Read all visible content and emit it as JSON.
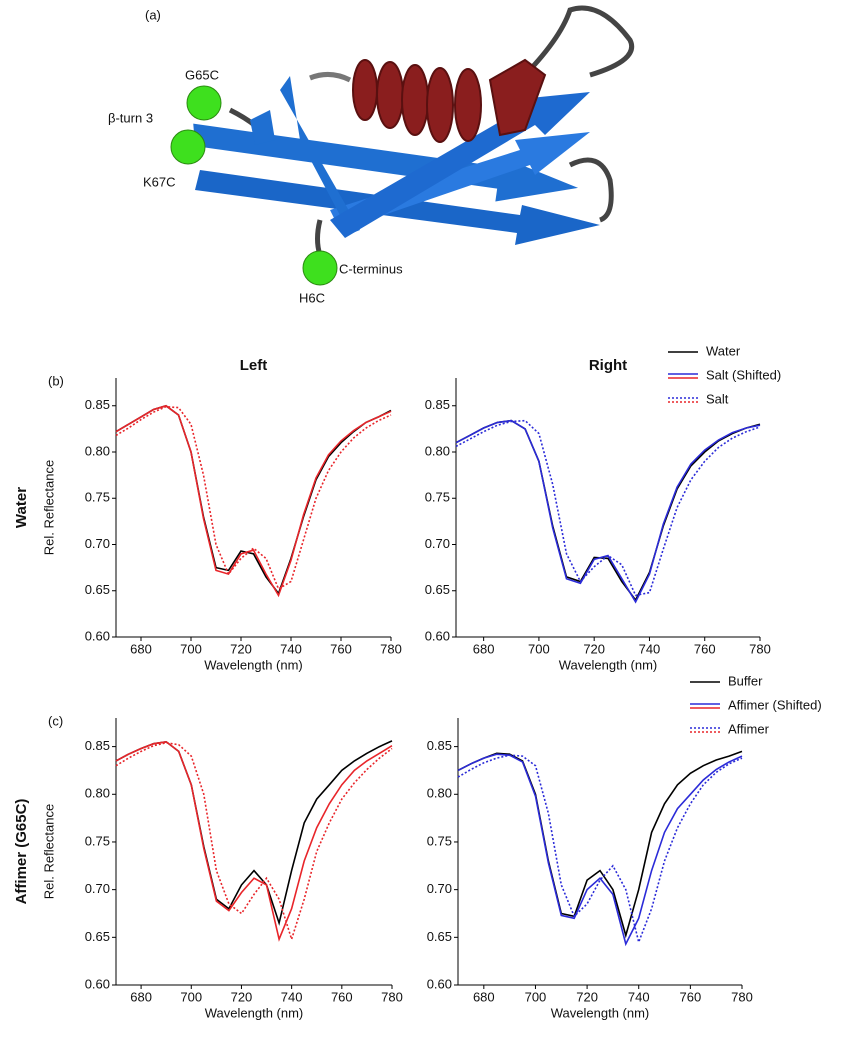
{
  "figure_a": {
    "panel": "(a)",
    "labels": [
      "G65C",
      "β-turn 3",
      "K67C",
      "C-terminus",
      "H6C"
    ]
  },
  "chart_data": [
    {
      "type": "line",
      "panel": "(b)",
      "title": "Left",
      "row_label": "Water",
      "x_label": "Wavelength (nm)",
      "y_label": "Rel. Reflectance",
      "x": [
        670,
        675,
        680,
        685,
        690,
        695,
        700,
        705,
        710,
        715,
        720,
        725,
        730,
        735,
        740,
        745,
        750,
        755,
        760,
        765,
        770,
        775,
        780
      ],
      "series": [
        {
          "name": "Water",
          "color": "#000000",
          "dotted": false,
          "values": [
            0.822,
            0.83,
            0.838,
            0.846,
            0.85,
            0.84,
            0.8,
            0.73,
            0.675,
            0.672,
            0.693,
            0.69,
            0.665,
            0.647,
            0.685,
            0.73,
            0.77,
            0.795,
            0.81,
            0.822,
            0.832,
            0.838,
            0.845
          ]
        },
        {
          "name": "Salt (Shifted)",
          "color": "#e8252a",
          "dotted": false,
          "values": [
            0.822,
            0.83,
            0.838,
            0.846,
            0.85,
            0.84,
            0.8,
            0.728,
            0.672,
            0.668,
            0.69,
            0.694,
            0.668,
            0.645,
            0.683,
            0.732,
            0.772,
            0.797,
            0.812,
            0.823,
            0.832,
            0.838,
            0.844
          ]
        },
        {
          "name": "Salt",
          "color": "#e8252a",
          "dotted": true,
          "values": [
            0.818,
            0.826,
            0.835,
            0.843,
            0.849,
            0.848,
            0.83,
            0.775,
            0.7,
            0.668,
            0.685,
            0.696,
            0.685,
            0.652,
            0.66,
            0.705,
            0.75,
            0.78,
            0.8,
            0.815,
            0.826,
            0.834,
            0.84
          ]
        }
      ],
      "xlim": [
        670,
        780
      ],
      "ylim": [
        0.6,
        0.88
      ],
      "xticks": [
        680,
        700,
        720,
        740,
        760,
        780
      ],
      "yticks": [
        {
          "value": 0.6,
          "label": "0.60"
        },
        0.65,
        {
          "value": 0.7,
          "label": "0.70"
        },
        0.75,
        {
          "value": 0.8,
          "label": "0.80"
        },
        0.85
      ]
    },
    {
      "type": "line",
      "title": "Right",
      "x_label": "Wavelength (nm)",
      "x": [
        670,
        675,
        680,
        685,
        690,
        695,
        700,
        705,
        710,
        715,
        720,
        725,
        730,
        735,
        740,
        745,
        750,
        755,
        760,
        765,
        770,
        775,
        780
      ],
      "series": [
        {
          "color": "#000000",
          "dotted": false,
          "values": [
            0.81,
            0.818,
            0.826,
            0.832,
            0.834,
            0.825,
            0.79,
            0.72,
            0.665,
            0.66,
            0.686,
            0.685,
            0.66,
            0.64,
            0.67,
            0.72,
            0.76,
            0.785,
            0.8,
            0.812,
            0.82,
            0.826,
            0.83
          ]
        },
        {
          "color": "#2b2bd8",
          "dotted": false,
          "values": [
            0.81,
            0.818,
            0.826,
            0.832,
            0.834,
            0.825,
            0.79,
            0.718,
            0.663,
            0.658,
            0.684,
            0.688,
            0.663,
            0.638,
            0.668,
            0.722,
            0.762,
            0.787,
            0.802,
            0.813,
            0.821,
            0.826,
            0.829
          ]
        },
        {
          "color": "#2b2bd8",
          "dotted": true,
          "values": [
            0.806,
            0.814,
            0.822,
            0.829,
            0.833,
            0.834,
            0.82,
            0.765,
            0.69,
            0.66,
            0.676,
            0.688,
            0.678,
            0.645,
            0.648,
            0.695,
            0.74,
            0.77,
            0.79,
            0.805,
            0.815,
            0.822,
            0.827
          ]
        }
      ],
      "xlim": [
        670,
        780
      ],
      "ylim": [
        0.6,
        0.88
      ],
      "xticks": [
        680,
        700,
        720,
        740,
        760,
        780
      ],
      "yticks": [
        {
          "value": 0.6,
          "label": "0.60"
        },
        0.65,
        {
          "value": 0.7,
          "label": "0.70"
        },
        0.75,
        {
          "value": 0.8,
          "label": "0.80"
        },
        0.85
      ]
    },
    {
      "type": "line",
      "panel": "(c)",
      "row_label": "Affimer (G65C)",
      "x_label": "Wavelength (nm)",
      "y_label": "Rel. Reflectance",
      "x": [
        670,
        675,
        680,
        685,
        690,
        695,
        700,
        705,
        710,
        715,
        720,
        725,
        730,
        735,
        740,
        745,
        750,
        755,
        760,
        765,
        770,
        775,
        780
      ],
      "series": [
        {
          "name": "Buffer",
          "color": "#000000",
          "dotted": false,
          "values": [
            0.835,
            0.842,
            0.848,
            0.853,
            0.855,
            0.845,
            0.81,
            0.745,
            0.69,
            0.68,
            0.705,
            0.72,
            0.705,
            0.665,
            0.72,
            0.77,
            0.795,
            0.81,
            0.825,
            0.835,
            0.843,
            0.85,
            0.856
          ]
        },
        {
          "name": "Affimer (Shifted)",
          "color": "#e8252a",
          "dotted": false,
          "values": [
            0.835,
            0.842,
            0.848,
            0.853,
            0.855,
            0.845,
            0.81,
            0.743,
            0.688,
            0.678,
            0.697,
            0.712,
            0.705,
            0.648,
            0.68,
            0.73,
            0.765,
            0.79,
            0.81,
            0.825,
            0.835,
            0.843,
            0.851
          ]
        },
        {
          "name": "Affimer",
          "color": "#e8252a",
          "dotted": true,
          "values": [
            0.83,
            0.838,
            0.845,
            0.851,
            0.854,
            0.852,
            0.84,
            0.8,
            0.72,
            0.685,
            0.675,
            0.695,
            0.712,
            0.69,
            0.648,
            0.69,
            0.74,
            0.77,
            0.795,
            0.812,
            0.826,
            0.838,
            0.848
          ]
        }
      ],
      "xlim": [
        670,
        780
      ],
      "ylim": [
        0.6,
        0.88
      ],
      "xticks": [
        680,
        700,
        720,
        740,
        760,
        780
      ],
      "yticks": [
        {
          "value": 0.6,
          "label": "0.60"
        },
        0.65,
        {
          "value": 0.7,
          "label": "0.70"
        },
        0.75,
        {
          "value": 0.8,
          "label": "0.80"
        },
        0.85
      ]
    },
    {
      "type": "line",
      "x_label": "Wavelength (nm)",
      "x": [
        670,
        675,
        680,
        685,
        690,
        695,
        700,
        705,
        710,
        715,
        720,
        725,
        730,
        735,
        740,
        745,
        750,
        755,
        760,
        765,
        770,
        775,
        780
      ],
      "series": [
        {
          "color": "#000000",
          "dotted": false,
          "values": [
            0.825,
            0.832,
            0.838,
            0.843,
            0.842,
            0.835,
            0.8,
            0.73,
            0.675,
            0.672,
            0.71,
            0.72,
            0.7,
            0.652,
            0.7,
            0.76,
            0.79,
            0.81,
            0.822,
            0.83,
            0.836,
            0.84,
            0.845
          ]
        },
        {
          "color": "#2b2bd8",
          "dotted": false,
          "values": [
            0.825,
            0.832,
            0.838,
            0.842,
            0.841,
            0.834,
            0.798,
            0.728,
            0.673,
            0.67,
            0.7,
            0.712,
            0.695,
            0.643,
            0.67,
            0.72,
            0.76,
            0.785,
            0.8,
            0.815,
            0.826,
            0.834,
            0.84
          ]
        },
        {
          "color": "#2b2bd8",
          "dotted": true,
          "values": [
            0.818,
            0.826,
            0.833,
            0.838,
            0.841,
            0.84,
            0.83,
            0.78,
            0.705,
            0.672,
            0.685,
            0.71,
            0.725,
            0.7,
            0.645,
            0.68,
            0.73,
            0.765,
            0.79,
            0.81,
            0.823,
            0.832,
            0.838
          ]
        }
      ],
      "xlim": [
        670,
        780
      ],
      "ylim": [
        0.6,
        0.88
      ],
      "xticks": [
        680,
        700,
        720,
        740,
        760,
        780
      ],
      "yticks": [
        {
          "value": 0.6,
          "label": "0.60"
        },
        0.65,
        {
          "value": 0.7,
          "label": "0.70"
        },
        0.75,
        {
          "value": 0.8,
          "label": "0.80"
        },
        0.85
      ]
    }
  ]
}
